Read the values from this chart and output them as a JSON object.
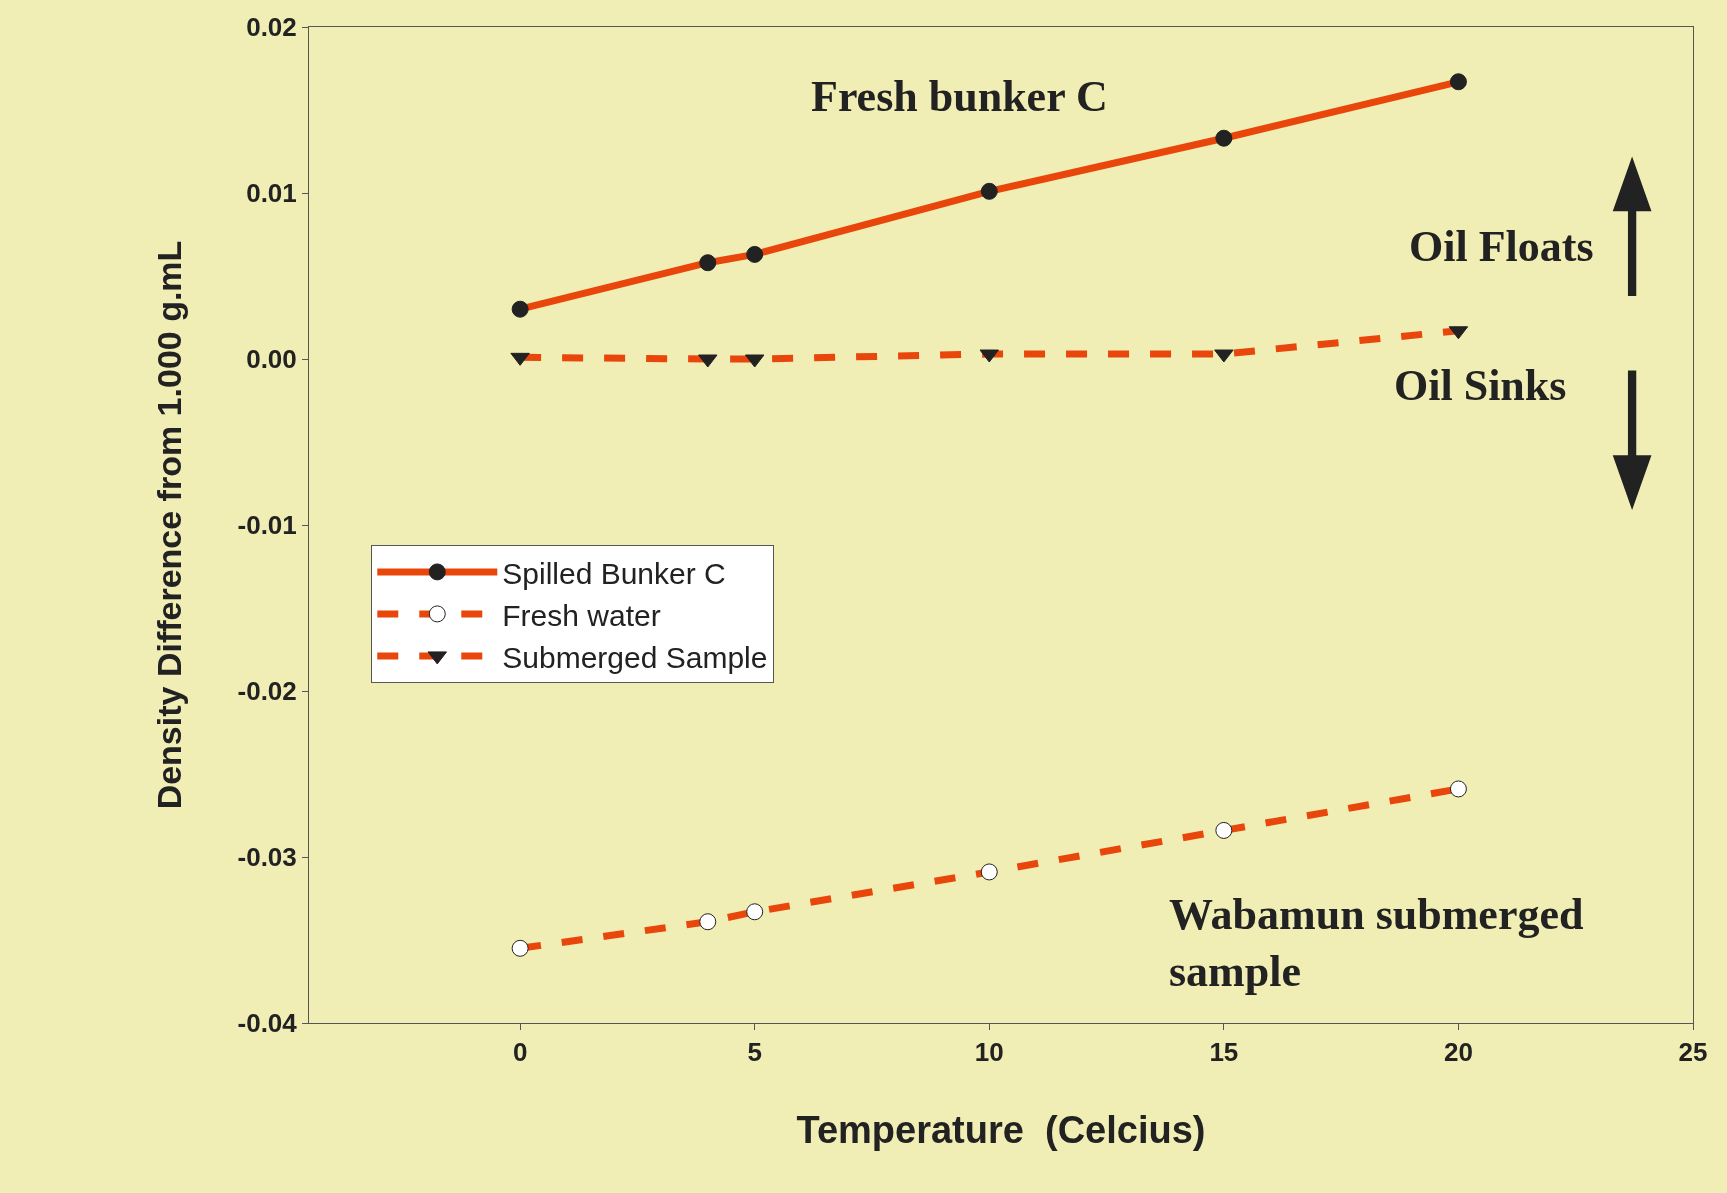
{
  "chart_data": {
    "type": "line",
    "xlabel": "Temperature  (Celcius)",
    "ylabel": "Density Difference from 1.000 g.mL",
    "x": [
      0,
      4,
      5,
      10,
      15,
      20
    ],
    "xlim": [
      -4.5,
      25
    ],
    "xticks": [
      0,
      5,
      10,
      15,
      20,
      25
    ],
    "ylim": [
      -0.04,
      0.02
    ],
    "yticks": [
      {
        "value": -0.04,
        "label": "-0.04"
      },
      {
        "value": -0.03,
        "label": "-0.03"
      },
      {
        "value": -0.02,
        "label": "-0.02"
      },
      {
        "value": -0.01,
        "label": "-0.01"
      },
      {
        "value": 0,
        "label": "0.00"
      },
      {
        "value": 0.01,
        "label": "0.01"
      },
      {
        "value": 0.02,
        "label": "0.02"
      }
    ],
    "grid": false,
    "legend": "left",
    "series": [
      {
        "name": "Spilled Bunker C",
        "color": "#e8460a",
        "marker": "circle",
        "line_style": "solid",
        "values": [
          0.003,
          0.0058,
          0.0063,
          0.0101,
          0.0133,
          0.0167
        ]
      },
      {
        "name": "Fresh water",
        "color": "#e8460a",
        "marker": "circle",
        "line_style": "dashed",
        "values": [
          -0.0355,
          -0.0339,
          -0.0333,
          -0.0309,
          -0.0284,
          -0.0259
        ]
      },
      {
        "name": "Submerged Sample",
        "color": "#e8460a",
        "marker": "triangle",
        "line_style": "dashed",
        "values": [
          0.0001,
          0.0,
          0.0,
          0.0003,
          0.0003,
          0.0017
        ]
      }
    ],
    "annotations": [
      "Fresh bunker C",
      "Oil Floats",
      "Oil Sinks",
      "Wabamun submerged\nsample"
    ]
  }
}
